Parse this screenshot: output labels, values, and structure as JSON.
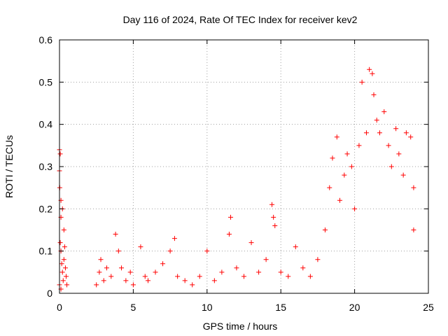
{
  "chart_data": {
    "type": "scatter",
    "title": "Day 116 of 2024, Rate Of TEC Index for receiver kev2",
    "xlabel": "GPS time / hours",
    "ylabel": "ROTI / TECUs",
    "xlim": [
      0,
      25
    ],
    "ylim": [
      0,
      0.6
    ],
    "xticks": [
      0,
      5,
      10,
      15,
      20,
      25
    ],
    "xtick_labels": [
      "0",
      "5",
      "10",
      "15",
      "20",
      "25"
    ],
    "yticks": [
      0,
      0.1,
      0.2,
      0.3,
      0.4,
      0.5,
      0.6
    ],
    "ytick_labels": [
      "0",
      "0.1",
      "0.2",
      "0.3",
      "0.4",
      "0.5",
      "0.6"
    ],
    "grid": true,
    "marker": "+",
    "color": "#ff0000",
    "series": [
      {
        "name": "ROTI",
        "points": [
          [
            0.0,
            0.34
          ],
          [
            0.0,
            0.29
          ],
          [
            0.05,
            0.33
          ],
          [
            0.02,
            0.25
          ],
          [
            0.1,
            0.22
          ],
          [
            0.1,
            0.18
          ],
          [
            0.05,
            0.12
          ],
          [
            0.1,
            0.1
          ],
          [
            0.15,
            0.07
          ],
          [
            0.2,
            0.05
          ],
          [
            0.25,
            0.03
          ],
          [
            0.3,
            0.08
          ],
          [
            0.35,
            0.11
          ],
          [
            0.4,
            0.06
          ],
          [
            0.45,
            0.04
          ],
          [
            0.5,
            0.02
          ],
          [
            0.3,
            0.15
          ],
          [
            0.2,
            0.2
          ],
          [
            0.0,
            0.02
          ],
          [
            0.1,
            0.01
          ],
          [
            2.5,
            0.02
          ],
          [
            2.7,
            0.05
          ],
          [
            2.8,
            0.08
          ],
          [
            3.0,
            0.03
          ],
          [
            3.2,
            0.06
          ],
          [
            3.5,
            0.04
          ],
          [
            3.8,
            0.14
          ],
          [
            4.0,
            0.1
          ],
          [
            4.2,
            0.06
          ],
          [
            4.5,
            0.03
          ],
          [
            4.8,
            0.05
          ],
          [
            5.0,
            0.02
          ],
          [
            5.5,
            0.11
          ],
          [
            5.8,
            0.04
          ],
          [
            6.0,
            0.03
          ],
          [
            6.5,
            0.05
          ],
          [
            7.0,
            0.07
          ],
          [
            7.5,
            0.1
          ],
          [
            7.8,
            0.13
          ],
          [
            8.0,
            0.04
          ],
          [
            8.5,
            0.03
          ],
          [
            9.0,
            0.02
          ],
          [
            9.5,
            0.04
          ],
          [
            10.0,
            0.1
          ],
          [
            10.5,
            0.03
          ],
          [
            11.0,
            0.05
          ],
          [
            11.5,
            0.14
          ],
          [
            11.6,
            0.18
          ],
          [
            12.0,
            0.06
          ],
          [
            12.5,
            0.04
          ],
          [
            13.0,
            0.12
          ],
          [
            13.5,
            0.05
          ],
          [
            14.0,
            0.08
          ],
          [
            14.4,
            0.21
          ],
          [
            14.5,
            0.18
          ],
          [
            14.6,
            0.16
          ],
          [
            15.0,
            0.05
          ],
          [
            15.5,
            0.04
          ],
          [
            16.0,
            0.11
          ],
          [
            16.5,
            0.06
          ],
          [
            17.0,
            0.04
          ],
          [
            17.5,
            0.08
          ],
          [
            18.0,
            0.15
          ],
          [
            18.3,
            0.25
          ],
          [
            18.5,
            0.32
          ],
          [
            18.8,
            0.37
          ],
          [
            19.0,
            0.22
          ],
          [
            19.3,
            0.28
          ],
          [
            19.5,
            0.33
          ],
          [
            19.8,
            0.3
          ],
          [
            20.0,
            0.2
          ],
          [
            20.3,
            0.35
          ],
          [
            20.5,
            0.5
          ],
          [
            20.8,
            0.38
          ],
          [
            21.0,
            0.53
          ],
          [
            21.2,
            0.52
          ],
          [
            21.3,
            0.47
          ],
          [
            21.5,
            0.41
          ],
          [
            21.7,
            0.38
          ],
          [
            22.0,
            0.43
          ],
          [
            22.3,
            0.35
          ],
          [
            22.5,
            0.3
          ],
          [
            22.8,
            0.39
          ],
          [
            23.0,
            0.33
          ],
          [
            23.3,
            0.28
          ],
          [
            23.5,
            0.38
          ],
          [
            23.8,
            0.37
          ],
          [
            24.0,
            0.25
          ],
          [
            24.0,
            0.15
          ]
        ]
      }
    ]
  }
}
